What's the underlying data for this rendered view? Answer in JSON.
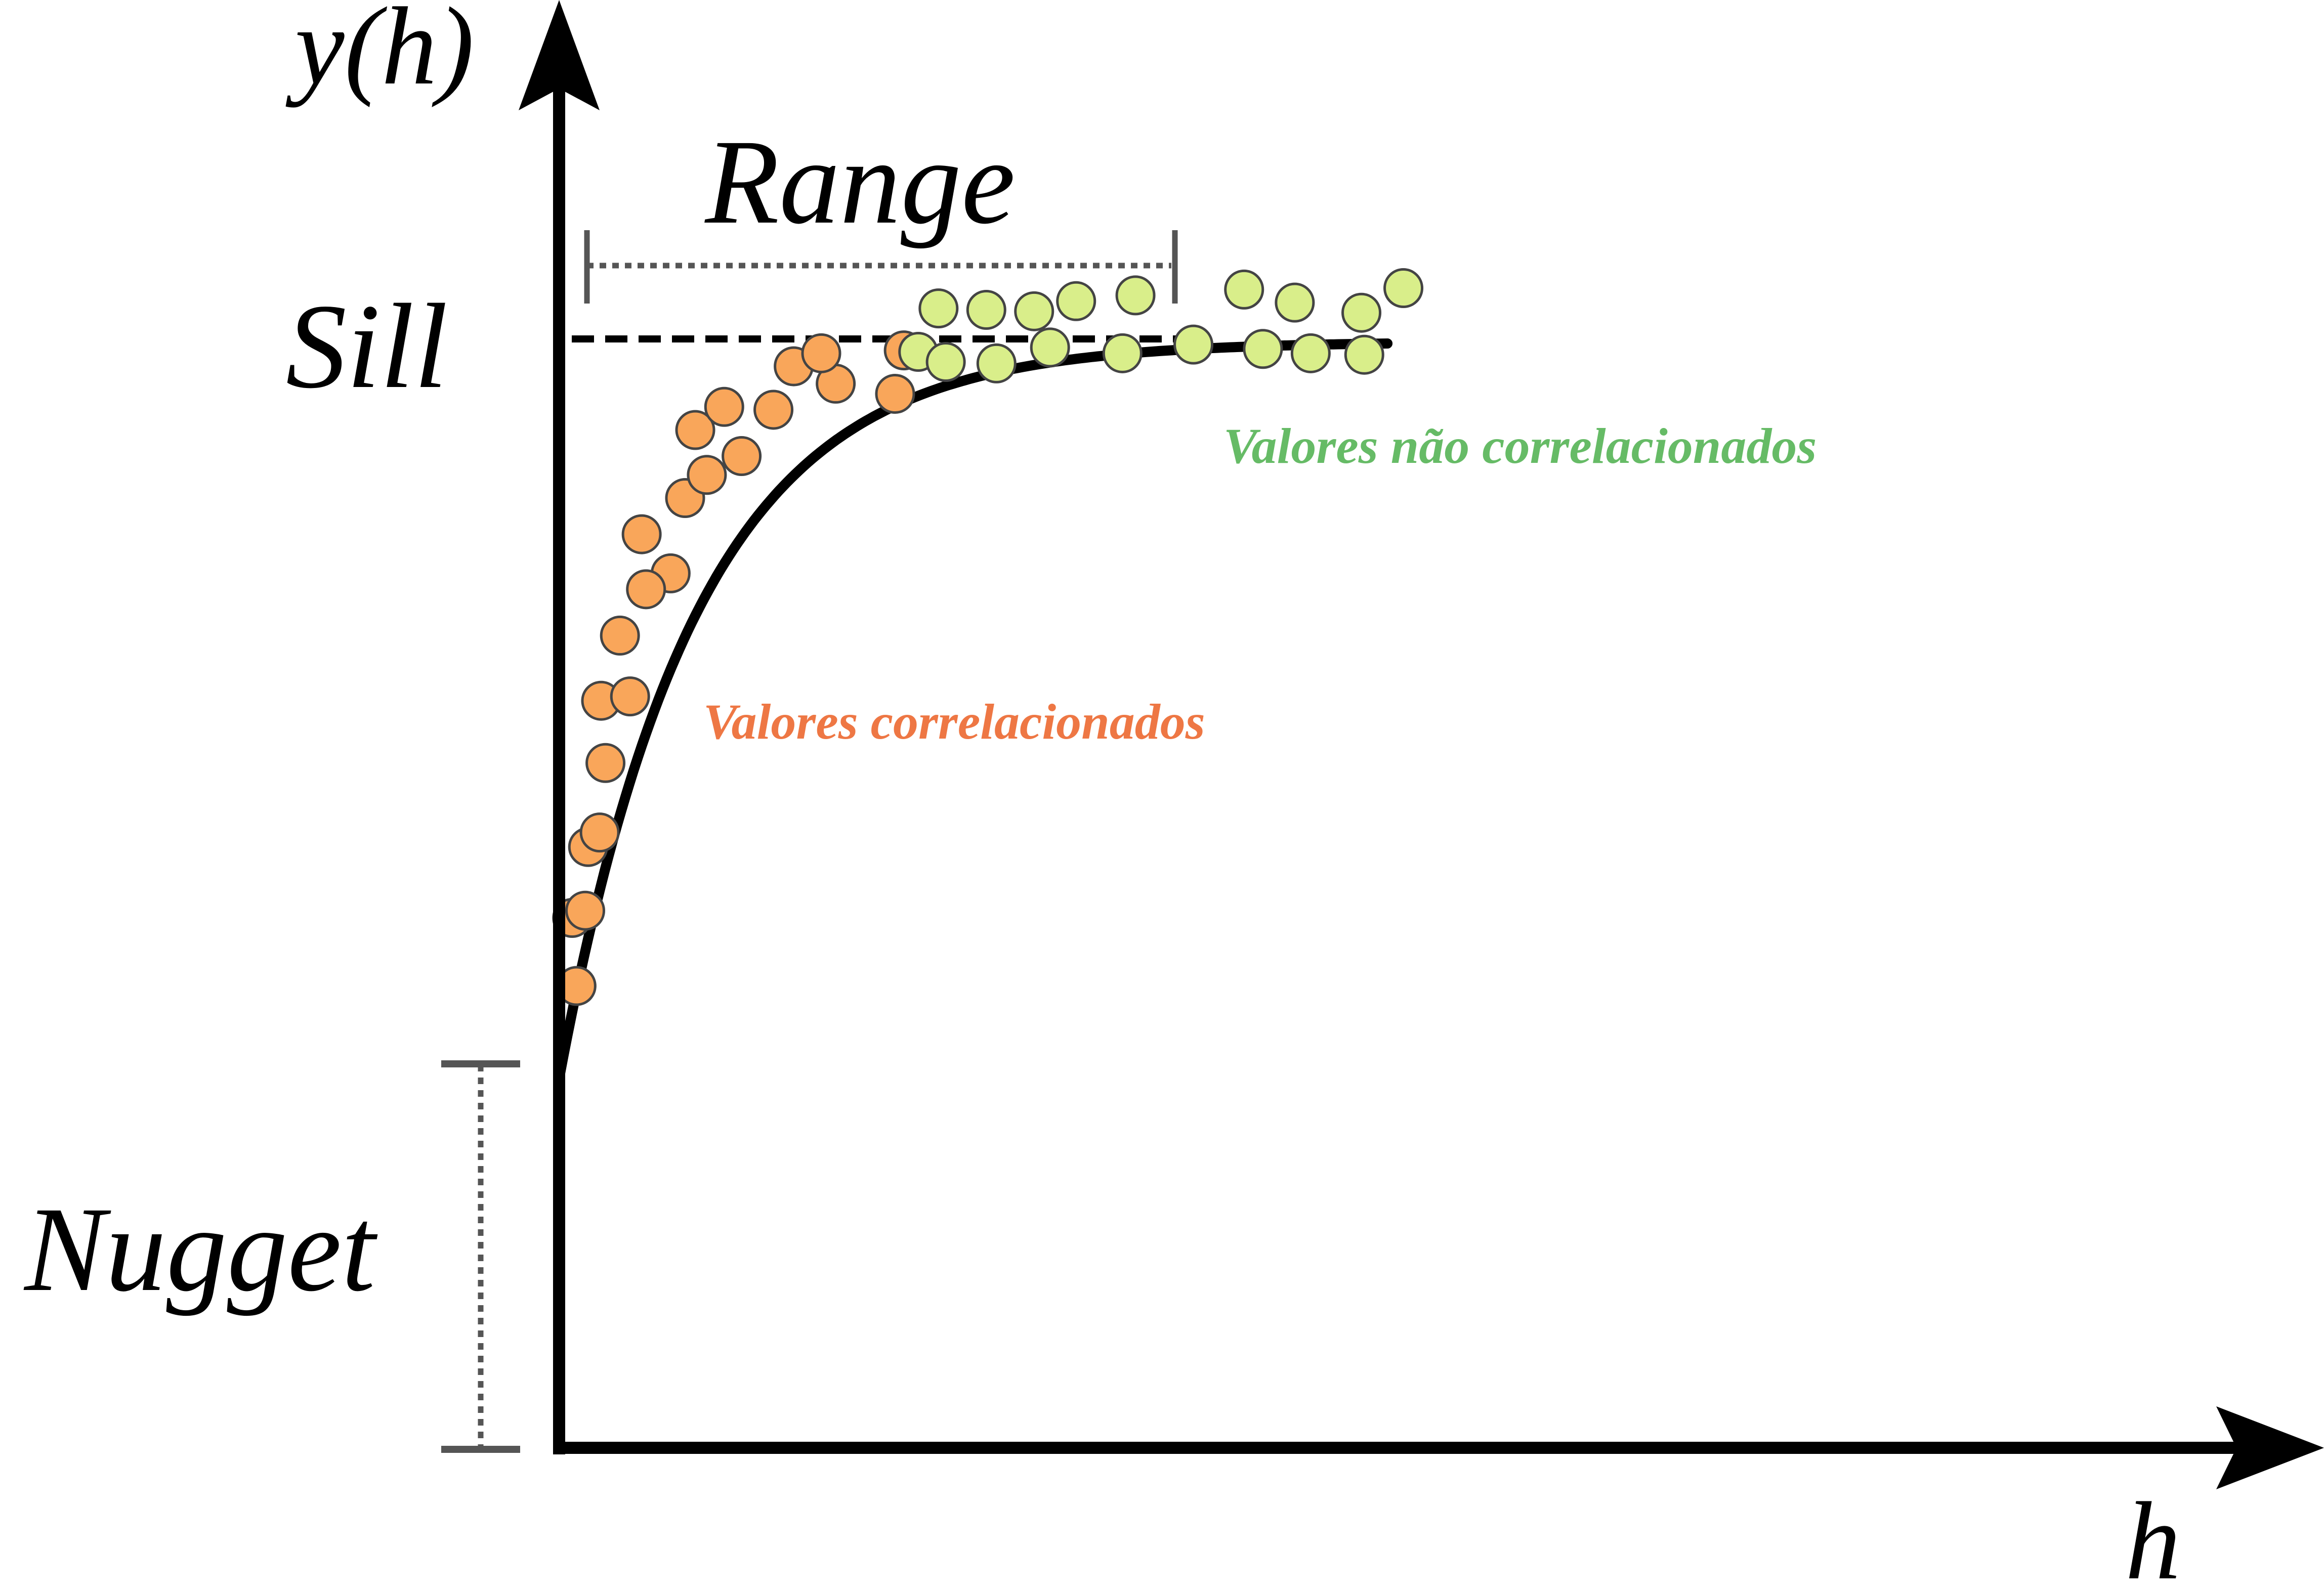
{
  "axes": {
    "y_label": "y(h)",
    "x_label": "h"
  },
  "annotations": {
    "range": "Range",
    "sill": "Sill",
    "nugget": "Nugget",
    "correlated": "Valores correlacionados",
    "uncorrelated": "Valores não correlacionados"
  },
  "colors": {
    "axis": "#000000",
    "curve": "#000000",
    "bracket": "#555555",
    "correlated_fill": "#F9A65A",
    "correlated_text": "#EE7744",
    "uncorrelated_fill": "#D9EE8A",
    "uncorrelated_text": "#66BB66",
    "point_stroke": "#444444"
  },
  "model": {
    "type": "exponential",
    "nugget": 0.255,
    "sill": 0.764,
    "range": 0.285
  },
  "points_correlated": [
    [
      0.012,
      0.319
    ],
    [
      0.009,
      0.366
    ],
    [
      0.018,
      0.371
    ],
    [
      0.02,
      0.415
    ],
    [
      0.028,
      0.425
    ],
    [
      0.032,
      0.473
    ],
    [
      0.029,
      0.516
    ],
    [
      0.042,
      0.561
    ],
    [
      0.049,
      0.519
    ],
    [
      0.077,
      0.604
    ],
    [
      0.06,
      0.593
    ],
    [
      0.057,
      0.631
    ],
    [
      0.087,
      0.656
    ],
    [
      0.102,
      0.672
    ],
    [
      0.094,
      0.703
    ],
    [
      0.126,
      0.685
    ],
    [
      0.114,
      0.719
    ],
    [
      0.148,
      0.717
    ],
    [
      0.162,
      0.747
    ],
    [
      0.191,
      0.735
    ],
    [
      0.181,
      0.756
    ],
    [
      0.232,
      0.728
    ],
    [
      0.238,
      0.758
    ]
  ],
  "points_uncorrelated": [
    [
      0.248,
      0.757
    ],
    [
      0.262,
      0.787
    ],
    [
      0.267,
      0.75
    ],
    [
      0.295,
      0.786
    ],
    [
      0.302,
      0.749
    ],
    [
      0.328,
      0.785
    ],
    [
      0.339,
      0.76
    ],
    [
      0.357,
      0.792
    ],
    [
      0.389,
      0.756
    ],
    [
      0.398,
      0.796
    ],
    [
      0.438,
      0.762
    ],
    [
      0.473,
      0.8
    ],
    [
      0.486,
      0.759
    ],
    [
      0.508,
      0.791
    ],
    [
      0.519,
      0.756
    ],
    [
      0.554,
      0.784
    ],
    [
      0.556,
      0.755
    ],
    [
      0.583,
      0.801
    ]
  ]
}
